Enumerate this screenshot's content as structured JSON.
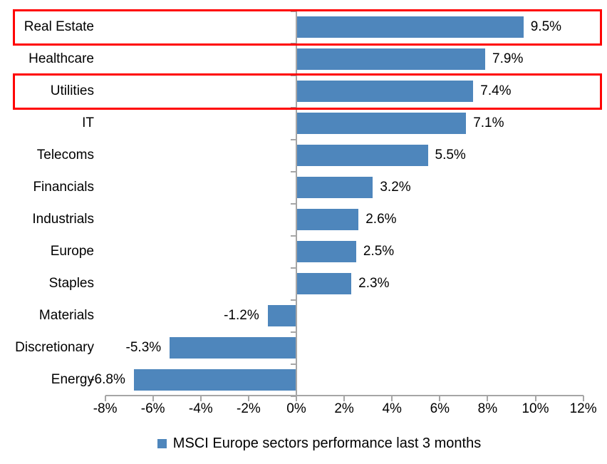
{
  "chart_data": {
    "type": "bar",
    "orientation": "horizontal",
    "categories": [
      "Real Estate",
      "Healthcare",
      "Utilities",
      "IT",
      "Telecoms",
      "Financials",
      "Industrials",
      "Europe",
      "Staples",
      "Materials",
      "Discretionary",
      "Energy"
    ],
    "series": [
      {
        "name": "MSCI Europe sectors performance last 3 months",
        "values": [
          9.5,
          7.9,
          7.4,
          7.1,
          5.5,
          3.2,
          2.6,
          2.5,
          2.3,
          -1.2,
          -5.3,
          -6.8
        ]
      }
    ],
    "value_labels": [
      "9.5%",
      "7.9%",
      "7.4%",
      "7.1%",
      "5.5%",
      "3.2%",
      "2.6%",
      "2.5%",
      "2.3%",
      "-1.2%",
      "-5.3%",
      "-6.8%"
    ],
    "highlighted_categories": [
      "Real Estate",
      "Utilities"
    ],
    "xlim": [
      -8,
      12
    ],
    "x_tick_values": [
      -8,
      -6,
      -4,
      -2,
      0,
      2,
      4,
      6,
      8,
      10,
      12
    ],
    "x_tick_labels": [
      "-8%",
      "-6%",
      "-4%",
      "-2%",
      "0%",
      "2%",
      "4%",
      "6%",
      "8%",
      "10%",
      "12%"
    ],
    "grid": false,
    "legend": {
      "position": "bottom-center",
      "marker": "square",
      "label": "MSCI Europe sectors performance last 3 months"
    },
    "colors": {
      "bar": "#4E86BC",
      "axis": "#A6A6A6",
      "highlight_box": "#FF0000",
      "text": "#000000"
    }
  }
}
